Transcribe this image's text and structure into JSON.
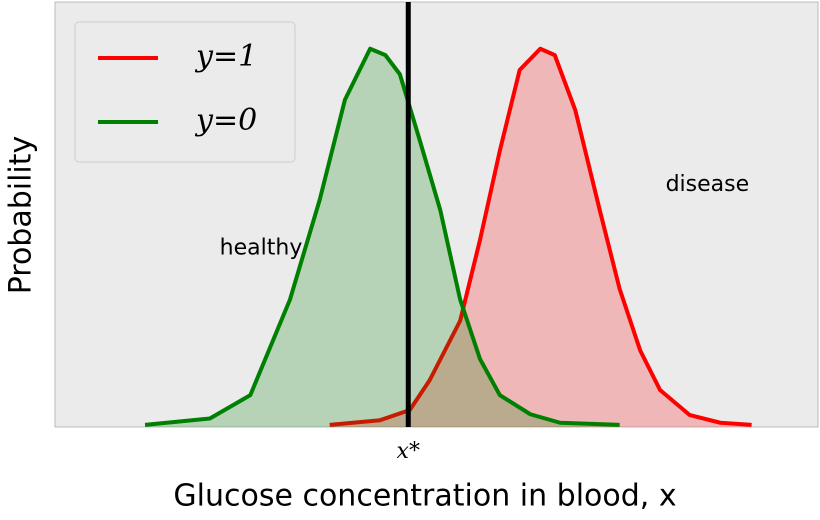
{
  "chart_data": {
    "type": "area",
    "xlabel": "Glucose concentration in blood, x",
    "ylabel": "Probability",
    "xlim": [
      0,
      100
    ],
    "ylim": [
      0,
      1
    ],
    "xticks": [
      {
        "value": 46.3,
        "label": "x*"
      }
    ],
    "threshold_color": "#000000",
    "legend": "upper left",
    "annotations": [
      {
        "text": "healthy",
        "x": 27,
        "y": 0.42
      },
      {
        "text": "disease",
        "x": 85.5,
        "y": 0.57
      }
    ],
    "series": [
      {
        "name": "y=1",
        "color": "#ff0000",
        "x": [
          36.0,
          42.6,
          46.5,
          49.1,
          53.1,
          55.7,
          58.3,
          60.9,
          63.6,
          65.5,
          68.2,
          71.4,
          74.0,
          76.7,
          79.3,
          83.2,
          87.2,
          91.3
        ],
        "values": [
          0.005,
          0.016,
          0.04,
          0.11,
          0.25,
          0.44,
          0.65,
          0.84,
          0.89,
          0.875,
          0.745,
          0.51,
          0.325,
          0.18,
          0.087,
          0.028,
          0.01,
          0.005
        ]
      },
      {
        "name": "y=0",
        "color": "#008000",
        "x": [
          11.8,
          20.3,
          25.6,
          30.8,
          34.7,
          38.0,
          41.3,
          43.3,
          45.2,
          47.8,
          50.5,
          53.1,
          55.7,
          58.3,
          62.3,
          66.2,
          74.0
        ],
        "values": [
          0.005,
          0.02,
          0.075,
          0.3,
          0.535,
          0.77,
          0.89,
          0.875,
          0.83,
          0.675,
          0.51,
          0.3,
          0.16,
          0.075,
          0.03,
          0.01,
          0.005
        ]
      }
    ]
  }
}
